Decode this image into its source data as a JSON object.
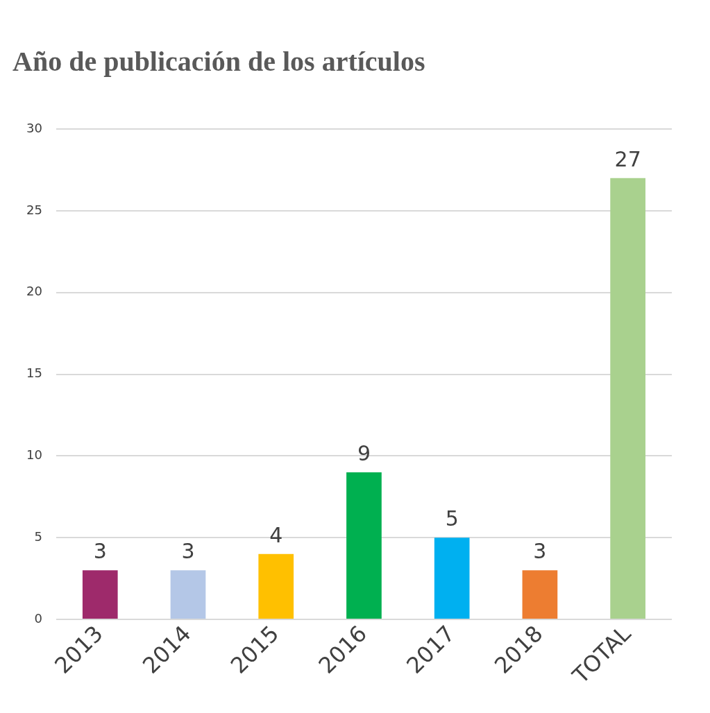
{
  "chart_data": {
    "type": "bar",
    "title": "Año de publicación de los artículos",
    "categories": [
      "2013",
      "2014",
      "2015",
      "2016",
      "2017",
      "2018",
      "TOTAL"
    ],
    "values": [
      3,
      3,
      4,
      9,
      5,
      3,
      27
    ],
    "colors": [
      "#9e2a6b",
      "#b4c7e7",
      "#ffc000",
      "#00b050",
      "#00b0f0",
      "#ed7d31",
      "#a9d18e"
    ],
    "ylim": [
      0,
      30
    ],
    "yticks": [
      0,
      5,
      10,
      15,
      20,
      25,
      30
    ],
    "grid": "y",
    "legend": false,
    "data_labels": true
  }
}
